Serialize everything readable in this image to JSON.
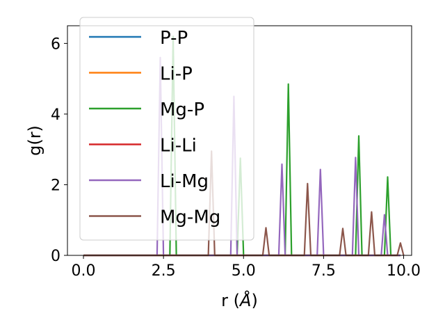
{
  "chart_data": {
    "type": "line",
    "xlabel_text": "r (",
    "xlabel_unit": "Å",
    "xlabel_close": ")",
    "ylabel": "g(r)",
    "xlim": [
      -0.5,
      10.25
    ],
    "ylim": [
      0,
      6.5
    ],
    "xticks": [
      0.0,
      2.5,
      5.0,
      7.5,
      10.0
    ],
    "xtick_labels": [
      "0.0",
      "2.5",
      "5.0",
      "7.5",
      "10.0"
    ],
    "yticks": [
      0,
      2,
      4,
      6
    ],
    "ytick_labels": [
      "0",
      "2",
      "4",
      "6"
    ],
    "grid": false,
    "legend_position": "top-left",
    "series": [
      {
        "name": "P-P",
        "color": "#1f77b4",
        "peaks": []
      },
      {
        "name": "Li-P",
        "color": "#ff7f0e",
        "peaks": []
      },
      {
        "name": "Mg-P",
        "color": "#2ca02c",
        "peaks": [
          [
            2.8,
            6.2
          ],
          [
            4.9,
            2.75
          ],
          [
            6.4,
            4.85
          ],
          [
            8.6,
            3.38
          ],
          [
            9.5,
            2.22
          ]
        ]
      },
      {
        "name": "Li-Li",
        "color": "#d62728",
        "peaks": []
      },
      {
        "name": "Li-Mg",
        "color": "#9467bd",
        "peaks": [
          [
            2.4,
            5.6
          ],
          [
            4.7,
            4.5
          ],
          [
            6.2,
            2.58
          ],
          [
            7.4,
            2.43
          ],
          [
            8.5,
            2.77
          ],
          [
            9.4,
            1.15
          ]
        ]
      },
      {
        "name": "Mg-Mg",
        "color": "#8c564b",
        "peaks": [
          [
            4.0,
            2.95
          ],
          [
            5.7,
            0.78
          ],
          [
            7.0,
            2.03
          ],
          [
            8.1,
            0.76
          ],
          [
            9.0,
            1.23
          ],
          [
            9.9,
            0.35
          ]
        ]
      }
    ]
  }
}
